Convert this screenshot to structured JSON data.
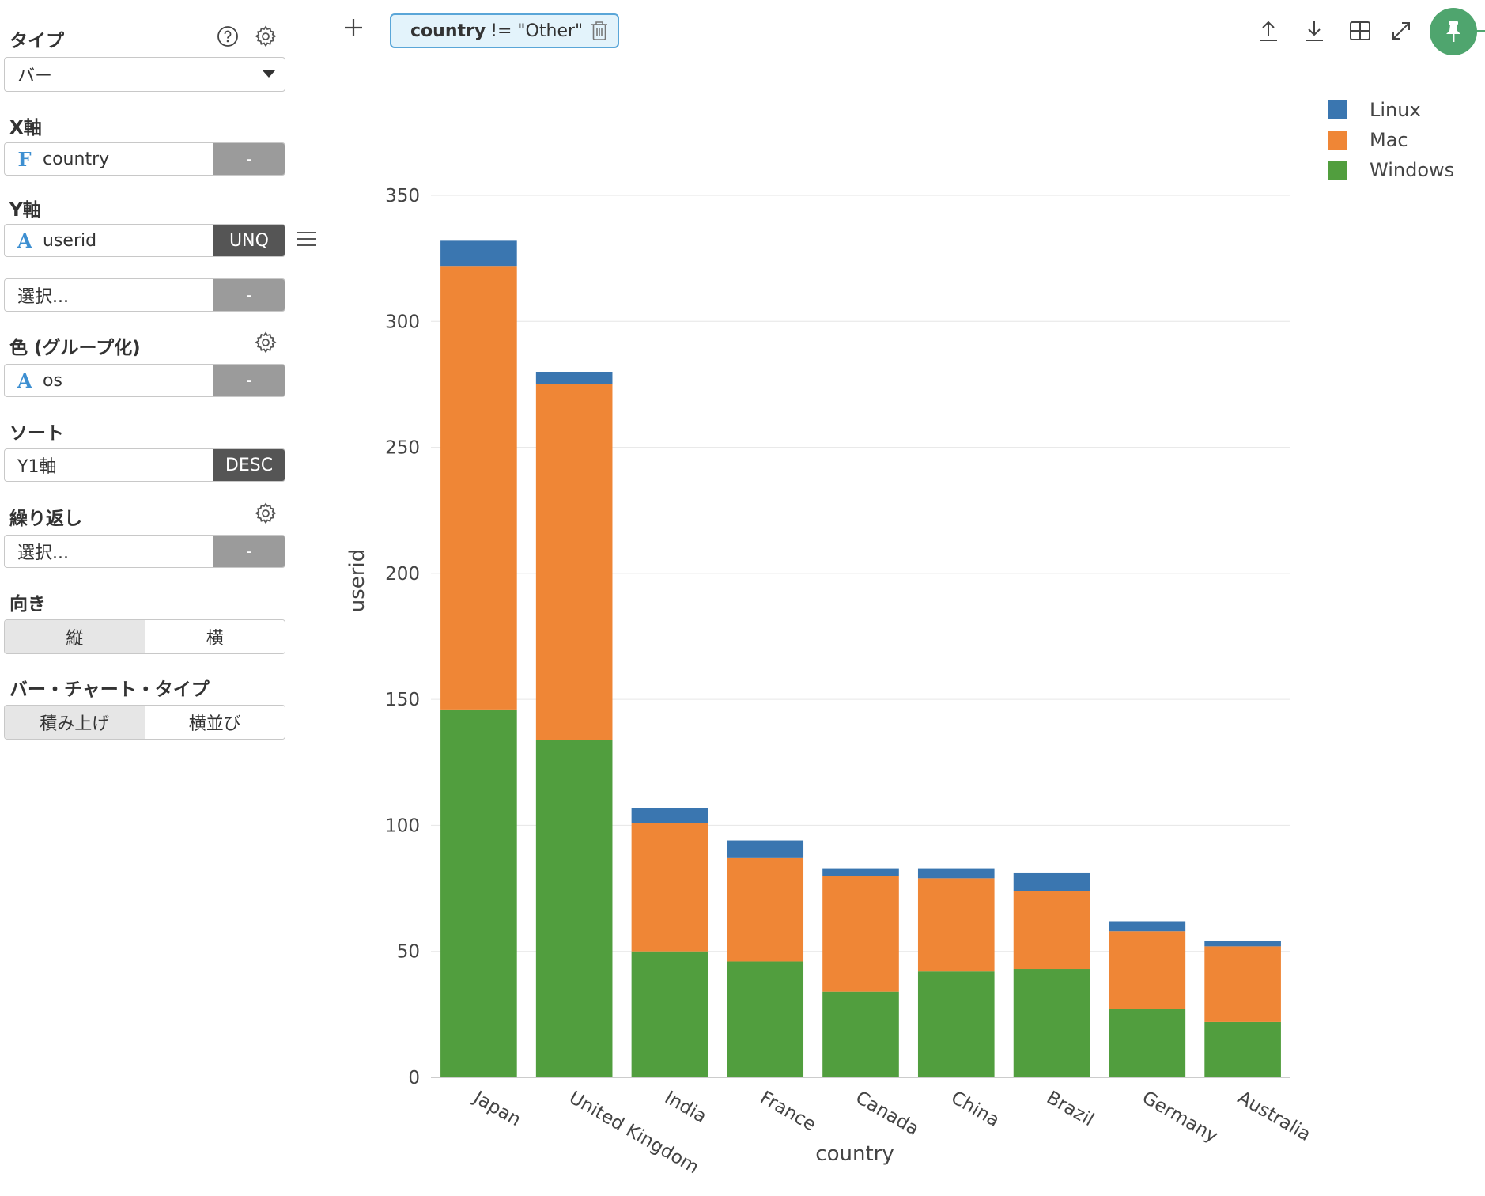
{
  "sidebar": {
    "type_label": "タイプ",
    "type_value": "バー",
    "x_label": "X軸",
    "x_field": {
      "type": "F",
      "name": "country",
      "agg": "-"
    },
    "y_label": "Y軸",
    "y_field": {
      "type": "A",
      "name": "userid",
      "agg": "UNQ"
    },
    "y2_field": {
      "placeholder": "選択...",
      "agg": "-"
    },
    "color_label": "色 (グループ化)",
    "color_field": {
      "type": "A",
      "name": "os",
      "agg": "-"
    },
    "sort_label": "ソート",
    "sort_field": {
      "name": "Y1軸",
      "order": "DESC"
    },
    "repeat_label": "繰り返し",
    "repeat_field": {
      "placeholder": "選択...",
      "agg": "-"
    },
    "orientation_label": "向き",
    "orientation_options": [
      "縦",
      "横"
    ],
    "bar_type_label": "バー・チャート・タイプ",
    "bar_type_options": [
      "積み上げ",
      "横並び"
    ]
  },
  "toolbar": {
    "filter_field": "country",
    "filter_rest": "!= \"Other\""
  },
  "icons": {
    "help": "help-circle-icon",
    "settings": "gear-icon",
    "add": "plus-icon",
    "trash": "trash-icon",
    "upload": "upload-icon",
    "download": "download-icon",
    "table": "table-icon",
    "expand": "expand-icon",
    "pin": "pin-icon",
    "menu": "menu-icon"
  },
  "colors": {
    "Linux": "#3a76b0",
    "Mac": "#ef8636",
    "Windows": "#519e3e",
    "accent": "#4fa56e",
    "filter_border": "#5aa6d8"
  },
  "chart_data": {
    "type": "bar",
    "stacked": true,
    "xlabel": "country",
    "ylabel": "userid",
    "ylim": [
      0,
      350
    ],
    "yticks": [
      0,
      50,
      100,
      150,
      200,
      250,
      300,
      350
    ],
    "categories": [
      "Japan",
      "United Kingdom",
      "India",
      "France",
      "Canada",
      "China",
      "Brazil",
      "Germany",
      "Australia"
    ],
    "series": [
      {
        "name": "Windows",
        "color": "#519e3e",
        "values": [
          146,
          134,
          50,
          46,
          34,
          42,
          43,
          27,
          22
        ]
      },
      {
        "name": "Mac",
        "color": "#ef8636",
        "values": [
          176,
          141,
          51,
          41,
          46,
          37,
          31,
          31,
          30
        ]
      },
      {
        "name": "Linux",
        "color": "#3a76b0",
        "values": [
          10,
          5,
          6,
          7,
          3,
          4,
          7,
          4,
          2
        ]
      }
    ],
    "legend": [
      "Linux",
      "Mac",
      "Windows"
    ],
    "legend_position": "top-right",
    "grid": true
  }
}
